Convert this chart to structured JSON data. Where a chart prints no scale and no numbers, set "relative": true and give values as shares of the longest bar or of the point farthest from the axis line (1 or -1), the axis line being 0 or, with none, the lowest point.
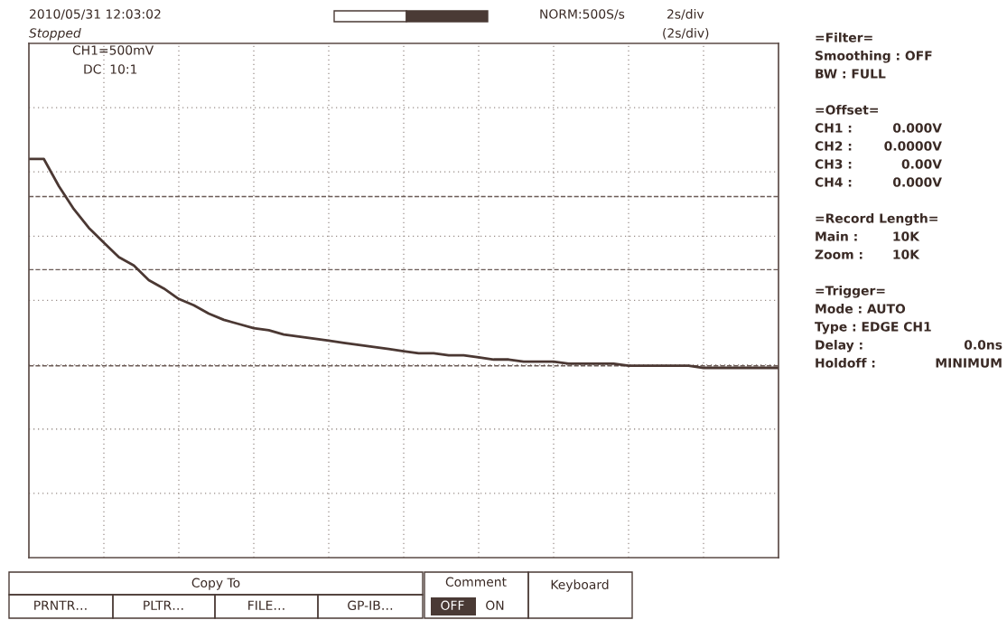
{
  "chart_data": {
    "type": "line",
    "relative": true,
    "grid": true,
    "categories": [
      null,
      null,
      null,
      null,
      null,
      null,
      null,
      null,
      null,
      null,
      null,
      null,
      null,
      null,
      null,
      null,
      null,
      null,
      null,
      null,
      null,
      null,
      null,
      null,
      null,
      null,
      null,
      null,
      null,
      null,
      null,
      null,
      null,
      null,
      null,
      null,
      null,
      null,
      null,
      null,
      null,
      null,
      null,
      null,
      null,
      null,
      null,
      null,
      null,
      null,
      null
    ],
    "series": [
      {
        "color": "#4b3833",
        "values": [
          1,
          1,
          0.87,
          0.76,
          0.67,
          0.6,
          0.53,
          0.49,
          0.42,
          0.38,
          0.33,
          0.3,
          0.26,
          0.23,
          0.21,
          0.19,
          0.18,
          0.16,
          0.15,
          0.14,
          0.13,
          0.12,
          0.11,
          0.1,
          0.09,
          0.08,
          0.07,
          0.07,
          0.06,
          0.06,
          0.05,
          0.04,
          0.04,
          0.03,
          0.03,
          0.03,
          0.02,
          0.02,
          0.02,
          0.02,
          0.01,
          0.01,
          0.01,
          0.01,
          0.01,
          0,
          0,
          0,
          0,
          0,
          0
        ]
      }
    ],
    "ref_lines": [
      {
        "axis": "y",
        "value": 0.82,
        "color": "#6a5a55",
        "line_style": "dashed"
      },
      {
        "axis": "y",
        "value": 0.47,
        "color": "#6a5a55",
        "line_style": "dashed"
      },
      {
        "axis": "y",
        "value": 0.01,
        "color": "#6a5a55",
        "line_style": "dashed"
      }
    ],
    "annotations": [
      "2010/05/31 12:03:02",
      "Stopped",
      "NORM:500S/s",
      "2s/div",
      "(2s/div)",
      "CH1=500mV",
      "DC  10:1",
      "=Filter=",
      "Smoothing : OFF",
      "BW : FULL",
      "=Offset=",
      "CH1 :",
      "0.000V",
      "CH2 :",
      "0.0000V",
      "CH3 :",
      "0.00V",
      "CH4 :",
      "0.000V",
      "=Record Length=",
      "Main :",
      "10K",
      "Zoom :",
      "10K",
      "=Trigger=",
      "Mode : AUTO",
      "Type : EDGE CH1",
      "Delay :",
      "0.0ns",
      "Holdoff :",
      "MINIMUM",
      "Copy To",
      "PRNTR…",
      "PLTR…",
      "FILE…",
      "GP-IB…",
      "Comment",
      "OFF",
      "ON",
      "Keyboard"
    ]
  }
}
